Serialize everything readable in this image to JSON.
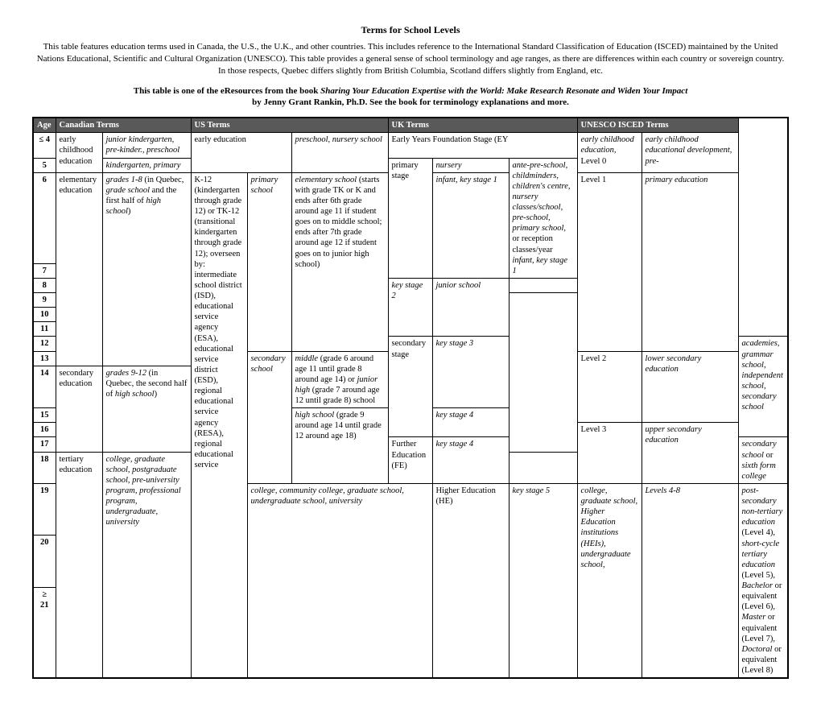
{
  "title": "Terms for School Levels",
  "intro": "This table features education terms used in Canada, the U.S., the U.K., and other countries. This includes reference to the International Standard Classification of Education (ISCED) maintained by the United Nations Educational, Scientific and Cultural Organization (UNESCO). This table provides a general sense of school terminology and age ranges, as there are differences within each country or sovereign country. In those respects, Quebec differs slightly from British Columbia, Scotland differs slightly from England, etc.",
  "subhead_lead": "This table is one of the eResources from the book ",
  "subhead_book": "Sharing Your Education Expertise with the World: Make Research Resonate and Widen Your Impact",
  "subhead_tail": "by Jenny Grant Rankin, Ph.D. See the book for terminology explanations and more.",
  "headers": {
    "age": "Age",
    "ca": "Canadian Terms",
    "us": "US Terms",
    "uk": "UK Terms",
    "un": "UNESCO ISCED Terms"
  },
  "ages": {
    "a0": "≤ 4",
    "a1": "5",
    "a2": "6",
    "a3": "7",
    "a4": "8",
    "a5": "9",
    "a6": "10",
    "a7": "11",
    "a8": "12",
    "a9": "13",
    "a10": "14",
    "a11": "15",
    "a12": "16",
    "a13": "17",
    "a14": "18",
    "a15": "19",
    "a16": "20",
    "a17": "≥ 21"
  },
  "ca": {
    "ecA": "early childhood education",
    "ecB_line1": "junior kindergarten, pre-kinder., preschool",
    "ecB_line2": "kindergarten, primary",
    "elemA": "elementary education",
    "elemB_pre": "grades 1-8",
    "elemB_mid": " (in Quebec, ",
    "elemB_ital": "grade school",
    "elemB_mid2": " and the first half of ",
    "elemB_ital2": "high school",
    "elemB_tail": ")",
    "secA": "secondary education",
    "secB_pre": "grades 9-12",
    "secB_mid": " (in Quebec, the second half of ",
    "secB_ital": "high school",
    "secB_tail": ")",
    "terA": "tertiary education",
    "terB": "college, graduate school, postgraduate school, pre-university program, professional program, undergraduate, university"
  },
  "us": {
    "ecA": "early education",
    "ecB": "preschool, nursery school",
    "big_plain1": "K-12 (kindergarten through grade 12) or TK-12 (transitional kindergarten through grade 12); overseen by: intermediate school district (ISD), educational service agency (ESA), educational service district (ESD), regional educational service agency (RESA), regional educational service",
    "primA": "primary school",
    "primB_pre": "elementary school",
    "primB_rest": " (starts with grade TK or K and ends after 6th grade around age 11 if student goes on to middle school; ends after 7th grade around age 12 if student goes on to junior high school)",
    "secA": "secondary school",
    "secB_mid_i": "middle",
    "secB_mid_txt": " (grade 6 around age 11 until grade 8 around age 14) or ",
    "secB_jh_i": "junior high",
    "secB_jh_txt": " (grade 7 around age 12 until grade 8) school",
    "secB_hs_i": "high school",
    "secB_hs_txt": " (grade 9 around age 14 until grade 12 around age 18)",
    "ter": "college, community college, graduate school, undergraduate school, university"
  },
  "uk": {
    "eyfs": "Early Years Foundation Stage (EY",
    "primA": "primary stage",
    "prim_nursery": "nursery",
    "prim_ks1": "infant, key stage 1",
    "prim_ks2": "key stage 2",
    "eyfsC": "ante-pre-school, childminders, children's centre, nursery classes/school, pre-school, primary school,",
    "eyfsC2": "or reception classes/year",
    "ks2C": "junior school",
    "secA": "secondary stage",
    "ks3": "key stage 3",
    "ks3C": "academies, grammar school, independent school, secondary school",
    "ks4": "key stage 4",
    "feA": "Further Education (FE)",
    "feB": "key stage 4",
    "feC_pre": "secondary school",
    "feC_mid": " or ",
    "feC_ital": "sixth form college",
    "heA": "Higher Education (HE)",
    "heB": "key stage 5",
    "heC": "college, graduate school, Higher Education institutions (HEIs), undergraduate school,"
  },
  "un": {
    "l0a": "early childhood education,",
    "l0aLev": "Level 0",
    "l0b": "early childhood educational development, pre-",
    "l1a": "Level 1",
    "l1b": "primary education",
    "l2a": "Level 2",
    "l2b": "lower secondary education",
    "l3a": "Level 3",
    "l3b": "upper secondary education",
    "l48a": "Levels 4-8",
    "l48b_pre": "post-secondary non-tertiary education",
    "l48b_l4": " (Level 4), ",
    "l48b_i2": "short-cycle tertiary education",
    "l48b_l5": " (Level 5), ",
    "l48b_i3": "Bachelor",
    "l48b_l6": " or equivalent (Level 6), ",
    "l48b_i4": "Master",
    "l48b_l7": " or equivalent (Level 7), ",
    "l48b_i5": "Doctoral",
    "l48b_l8": " or equivalent (Level 8)"
  }
}
